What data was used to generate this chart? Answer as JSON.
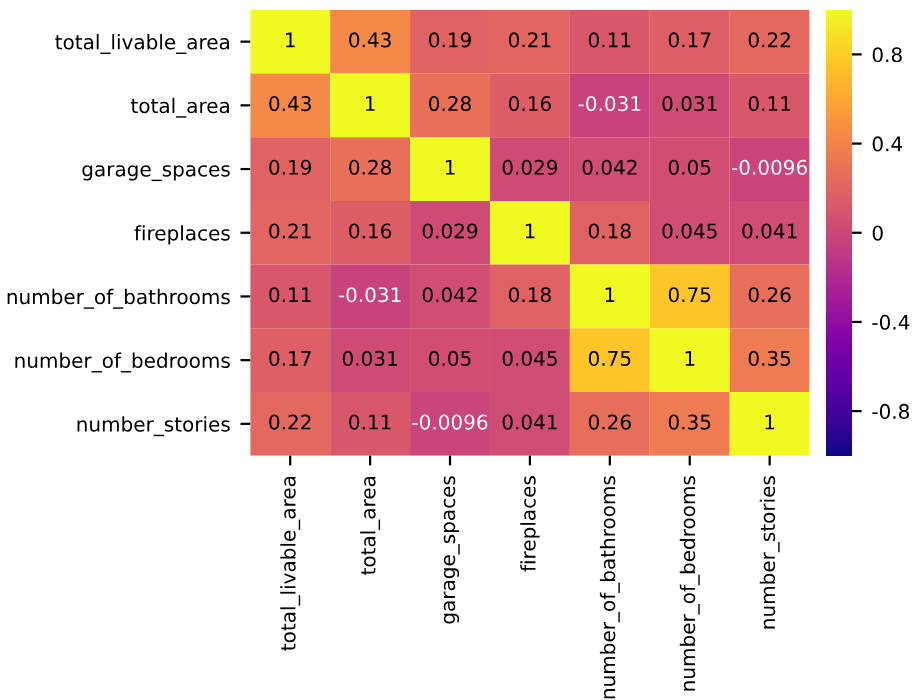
{
  "chart_data": {
    "type": "heatmap",
    "categories": [
      "total_livable_area",
      "total_area",
      "garage_spaces",
      "fireplaces",
      "number_of_bathrooms",
      "number_of_bedrooms",
      "number_stories"
    ],
    "y_categories": [
      "total_livable_area",
      "total_area",
      "garage_spaces",
      "fireplaces",
      "number_of_bathrooms",
      "number_of_bedrooms",
      "number_stories"
    ],
    "cells": [
      [
        1,
        0.43,
        0.19,
        0.21,
        0.11,
        0.17,
        0.22
      ],
      [
        0.43,
        1,
        0.28,
        0.16,
        -0.031,
        0.031,
        0.11
      ],
      [
        0.19,
        0.28,
        1,
        0.029,
        0.042,
        0.05,
        -0.0096
      ],
      [
        0.21,
        0.16,
        0.029,
        1,
        0.18,
        0.045,
        0.041
      ],
      [
        0.11,
        -0.031,
        0.042,
        0.18,
        1,
        0.75,
        0.26
      ],
      [
        0.17,
        0.031,
        0.05,
        0.045,
        0.75,
        1,
        0.35
      ],
      [
        0.22,
        0.11,
        -0.0096,
        0.041,
        0.26,
        0.35,
        1
      ]
    ],
    "data_labels": true,
    "clim": [
      -1,
      1
    ],
    "cticks": [
      -0.8,
      -0.4,
      0.0,
      0.4,
      0.8
    ]
  }
}
